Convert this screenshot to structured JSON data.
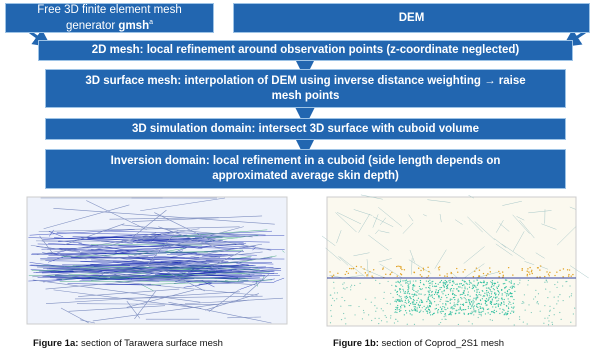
{
  "inputs": [
    {
      "text": "Free 3D finite element mesh generator ",
      "bold": "gmsh",
      "sup": "a"
    },
    {
      "text": "DEM"
    }
  ],
  "steps": [
    "2D mesh: local refinement around observation points (z-coordinate neglected)",
    "3D surface mesh: interpolation of DEM using inverse distance weighting →  raise mesh points",
    "3D simulation domain: intersect  3D surface with cuboid volume",
    "Inversion domain: local  refinement in a cuboid (side length depends on approximated average skin depth)"
  ],
  "figures": [
    {
      "label": "Figure 1a:",
      "caption": " section of Tarawera surface mesh"
    },
    {
      "label": "Figure 1b:",
      "caption": " section of Coprod_2S1 mesh"
    }
  ]
}
